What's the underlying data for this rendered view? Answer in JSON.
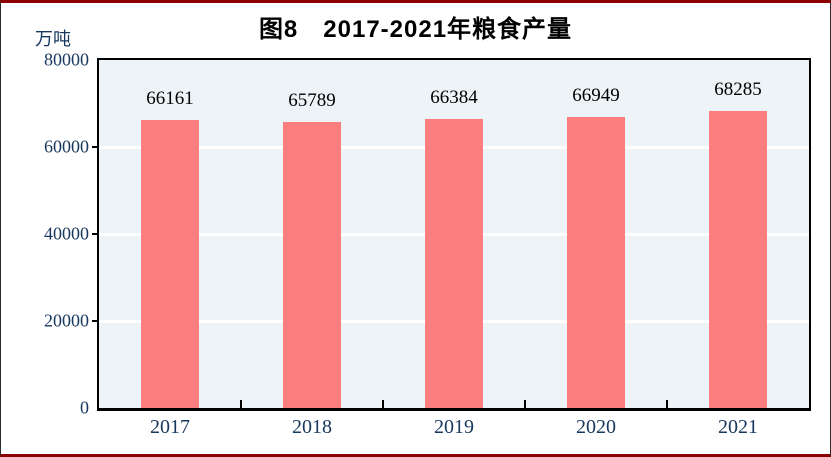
{
  "figure": {
    "title": "图8　2017-2021年粮食产量",
    "unit_label": "万吨"
  },
  "chart_data": {
    "type": "bar",
    "title": "图8　2017-2021年粮食产量",
    "ylabel": "万吨",
    "xlabel": "",
    "categories": [
      "2017",
      "2018",
      "2019",
      "2020",
      "2021"
    ],
    "values": [
      66161,
      65789,
      66384,
      66949,
      68285
    ],
    "data_labels": [
      "66161",
      "65789",
      "66384",
      "66949",
      "68285"
    ],
    "ylim": [
      0,
      80000
    ],
    "yticks": [
      0,
      20000,
      40000,
      60000,
      80000
    ],
    "grid": "horizontal white gridlines at 20000/40000/60000",
    "legend": "none",
    "colors": {
      "bar_fill": "#FC7D7D",
      "plot_background": "#EDF3F7",
      "gridline": "#FFFFFF",
      "axis_border": "#000000",
      "axis_text": "#17375E",
      "data_label_text": "#000000",
      "title_text": "#000000",
      "page_rule": "#8B0000"
    }
  }
}
